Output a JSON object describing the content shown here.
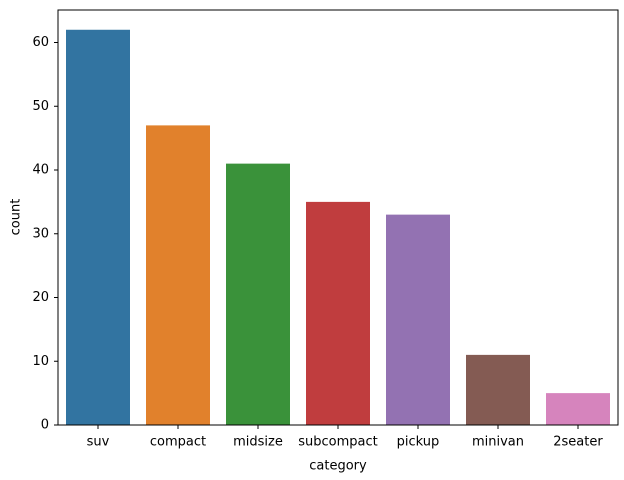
{
  "chart_data": {
    "type": "bar",
    "x_label": "category",
    "y_label": "count",
    "categories": [
      "suv",
      "compact",
      "midsize",
      "subcompact",
      "pickup",
      "minivan",
      "2seater"
    ],
    "values": [
      62,
      47,
      41,
      35,
      33,
      11,
      5
    ],
    "colors": [
      "#3274a1",
      "#e1812c",
      "#3a923a",
      "#c03d3e",
      "#9372b2",
      "#845b53",
      "#d684bd"
    ],
    "ylim": [
      0,
      65.1
    ],
    "yticks": [
      0,
      10,
      20,
      30,
      40,
      50,
      60
    ],
    "grid": false
  }
}
